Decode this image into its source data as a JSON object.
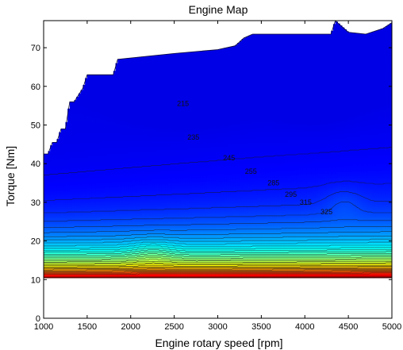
{
  "chart_data": {
    "type": "contour",
    "title": "Engine Map",
    "xlabel": "Engine rotary speed [rpm]",
    "ylabel": "Torque [Nm]",
    "xlim": [
      1000,
      5000
    ],
    "ylim": [
      0,
      77
    ],
    "xticks": [
      1000,
      1500,
      2000,
      2500,
      3000,
      3500,
      4000,
      4500,
      5000
    ],
    "yticks": [
      0,
      10,
      20,
      30,
      40,
      50,
      60,
      70
    ],
    "grid": false,
    "colormap": "jet",
    "min_torque": 10.5,
    "max_torque_curve": {
      "rpm": [
        1000,
        1050,
        1100,
        1150,
        1200,
        1250,
        1300,
        1350,
        1450,
        1500,
        1600,
        1700,
        1800,
        1850,
        2500,
        3000,
        3200,
        3300,
        3400,
        3500,
        3800,
        4000,
        4300,
        4350,
        4400,
        4500,
        4700,
        4900,
        5000
      ],
      "torque": [
        42.5,
        42.5,
        45.5,
        45.5,
        49,
        49,
        56,
        56,
        59.5,
        63,
        63,
        63,
        63,
        67,
        68.5,
        69.5,
        70.5,
        72.5,
        73.5,
        73.5,
        73.5,
        73.5,
        73.5,
        77,
        76,
        74,
        73.5,
        75,
        76.5
      ]
    },
    "contour_labels": [
      {
        "rpm": 2600,
        "torque": 55.5,
        "text": "215"
      },
      {
        "rpm": 2720,
        "torque": 46.8,
        "text": "235"
      },
      {
        "rpm": 3130,
        "torque": 41.5,
        "text": "245"
      },
      {
        "rpm": 3380,
        "torque": 38.0,
        "text": "255"
      },
      {
        "rpm": 3640,
        "torque": 35.0,
        "text": "285"
      },
      {
        "rpm": 3840,
        "torque": 32.0,
        "text": "295"
      },
      {
        "rpm": 4010,
        "torque": 30.0,
        "text": "315"
      },
      {
        "rpm": 4250,
        "torque": 27.5,
        "text": "325"
      }
    ]
  }
}
